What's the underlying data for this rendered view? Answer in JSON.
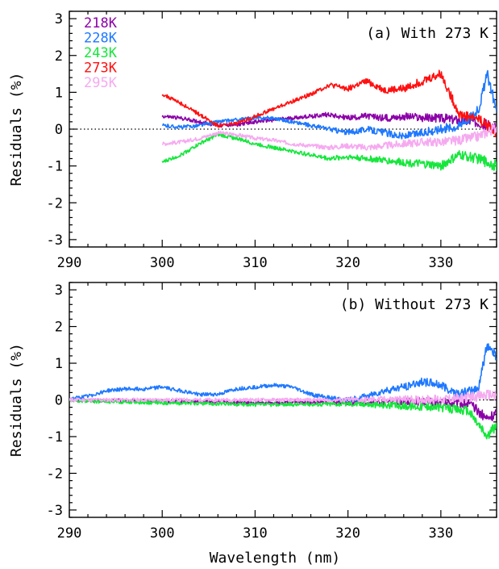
{
  "chart_data": [
    {
      "type": "line",
      "panel_label": "(a) With 273 K",
      "xlabel": "",
      "ylabel": "Residuals (%)",
      "xlim": [
        290,
        336
      ],
      "ylim": [
        -3.2,
        3.2
      ],
      "x_ticks": [
        290,
        300,
        310,
        320,
        330
      ],
      "y_ticks": [
        -3,
        -2,
        -1,
        0,
        1,
        2,
        3
      ],
      "reference_line": 0,
      "legend_position": "top-left",
      "series": [
        {
          "name": "218K",
          "color": "#8b00a8",
          "x": [
            300,
            302,
            304,
            306,
            308,
            310,
            312,
            314,
            316,
            318,
            320,
            322,
            324,
            326,
            328,
            330,
            332,
            334,
            336
          ],
          "y": [
            0.35,
            0.3,
            0.2,
            0.1,
            0.12,
            0.2,
            0.25,
            0.3,
            0.35,
            0.4,
            0.3,
            0.35,
            0.3,
            0.35,
            0.3,
            0.3,
            0.25,
            0.2,
            0.0
          ]
        },
        {
          "name": "228K",
          "color": "#1e78ff",
          "x": [
            300,
            302,
            304,
            306,
            308,
            310,
            312,
            314,
            316,
            318,
            320,
            322,
            324,
            326,
            328,
            330,
            332,
            334,
            335,
            336
          ],
          "y": [
            0.1,
            0.05,
            0.1,
            0.2,
            0.25,
            0.3,
            0.3,
            0.2,
            0.1,
            0.0,
            -0.1,
            0.0,
            -0.1,
            -0.2,
            -0.1,
            0.0,
            0.1,
            0.5,
            1.5,
            0.5
          ]
        },
        {
          "name": "243K",
          "color": "#16e63c",
          "x": [
            300,
            302,
            304,
            306,
            308,
            310,
            312,
            314,
            316,
            318,
            320,
            322,
            324,
            326,
            328,
            330,
            332,
            334,
            336
          ],
          "y": [
            -0.9,
            -0.7,
            -0.4,
            -0.15,
            -0.25,
            -0.4,
            -0.5,
            -0.6,
            -0.7,
            -0.8,
            -0.75,
            -0.8,
            -0.85,
            -0.9,
            -0.95,
            -1.0,
            -0.7,
            -0.8,
            -1.0
          ]
        },
        {
          "name": "273K",
          "color": "#ff1010",
          "x": [
            300,
            302,
            304,
            306,
            308,
            310,
            312,
            314,
            316,
            318,
            320,
            322,
            324,
            326,
            328,
            330,
            332,
            334,
            336
          ],
          "y": [
            0.95,
            0.7,
            0.4,
            0.1,
            0.15,
            0.35,
            0.55,
            0.75,
            0.95,
            1.2,
            1.1,
            1.3,
            1.05,
            1.1,
            1.3,
            1.5,
            0.4,
            0.3,
            -0.1
          ]
        },
        {
          "name": "295K",
          "color": "#f5aaf0",
          "x": [
            300,
            302,
            304,
            306,
            308,
            310,
            312,
            314,
            316,
            318,
            320,
            322,
            324,
            326,
            328,
            330,
            332,
            334,
            336
          ],
          "y": [
            -0.4,
            -0.35,
            -0.25,
            -0.1,
            -0.15,
            -0.25,
            -0.3,
            -0.4,
            -0.45,
            -0.5,
            -0.45,
            -0.5,
            -0.45,
            -0.4,
            -0.35,
            -0.35,
            -0.3,
            -0.2,
            0.05
          ]
        }
      ]
    },
    {
      "type": "line",
      "panel_label": "(b) Without 273 K",
      "xlabel": "Wavelength (nm)",
      "ylabel": "Residuals (%)",
      "xlim": [
        290,
        336
      ],
      "ylim": [
        -3.2,
        3.2
      ],
      "x_ticks": [
        290,
        300,
        310,
        320,
        330
      ],
      "y_ticks": [
        -3,
        -2,
        -1,
        0,
        1,
        2,
        3
      ],
      "reference_line": 0,
      "series": [
        {
          "color": "#8b00a8",
          "x": [
            290,
            295,
            300,
            305,
            310,
            315,
            320,
            325,
            330,
            333,
            335,
            336
          ],
          "y": [
            0.0,
            -0.02,
            -0.03,
            -0.05,
            -0.07,
            -0.07,
            -0.06,
            -0.05,
            -0.05,
            -0.1,
            -0.5,
            -0.35
          ]
        },
        {
          "color": "#1e78ff",
          "x": [
            290,
            292,
            294,
            296,
            298,
            300,
            302,
            304,
            306,
            308,
            310,
            312,
            314,
            316,
            318,
            320,
            322,
            324,
            326,
            328,
            330,
            332,
            334,
            335,
            336
          ],
          "y": [
            0.02,
            0.1,
            0.25,
            0.3,
            0.3,
            0.35,
            0.25,
            0.15,
            0.15,
            0.3,
            0.35,
            0.4,
            0.35,
            0.15,
            0.05,
            0.0,
            0.1,
            0.25,
            0.35,
            0.5,
            0.4,
            0.15,
            0.3,
            1.5,
            1.2
          ]
        },
        {
          "color": "#16e63c",
          "x": [
            290,
            295,
            300,
            305,
            310,
            315,
            320,
            325,
            330,
            333,
            335,
            336
          ],
          "y": [
            -0.02,
            -0.05,
            -0.08,
            -0.1,
            -0.13,
            -0.12,
            -0.1,
            -0.15,
            -0.2,
            -0.3,
            -1.0,
            -0.7
          ]
        },
        {
          "color": "#f5aaf0",
          "x": [
            290,
            300,
            310,
            320,
            330,
            334,
            336
          ],
          "y": [
            0.0,
            0.0,
            0.0,
            0.0,
            0.02,
            0.1,
            0.15
          ]
        }
      ]
    }
  ]
}
